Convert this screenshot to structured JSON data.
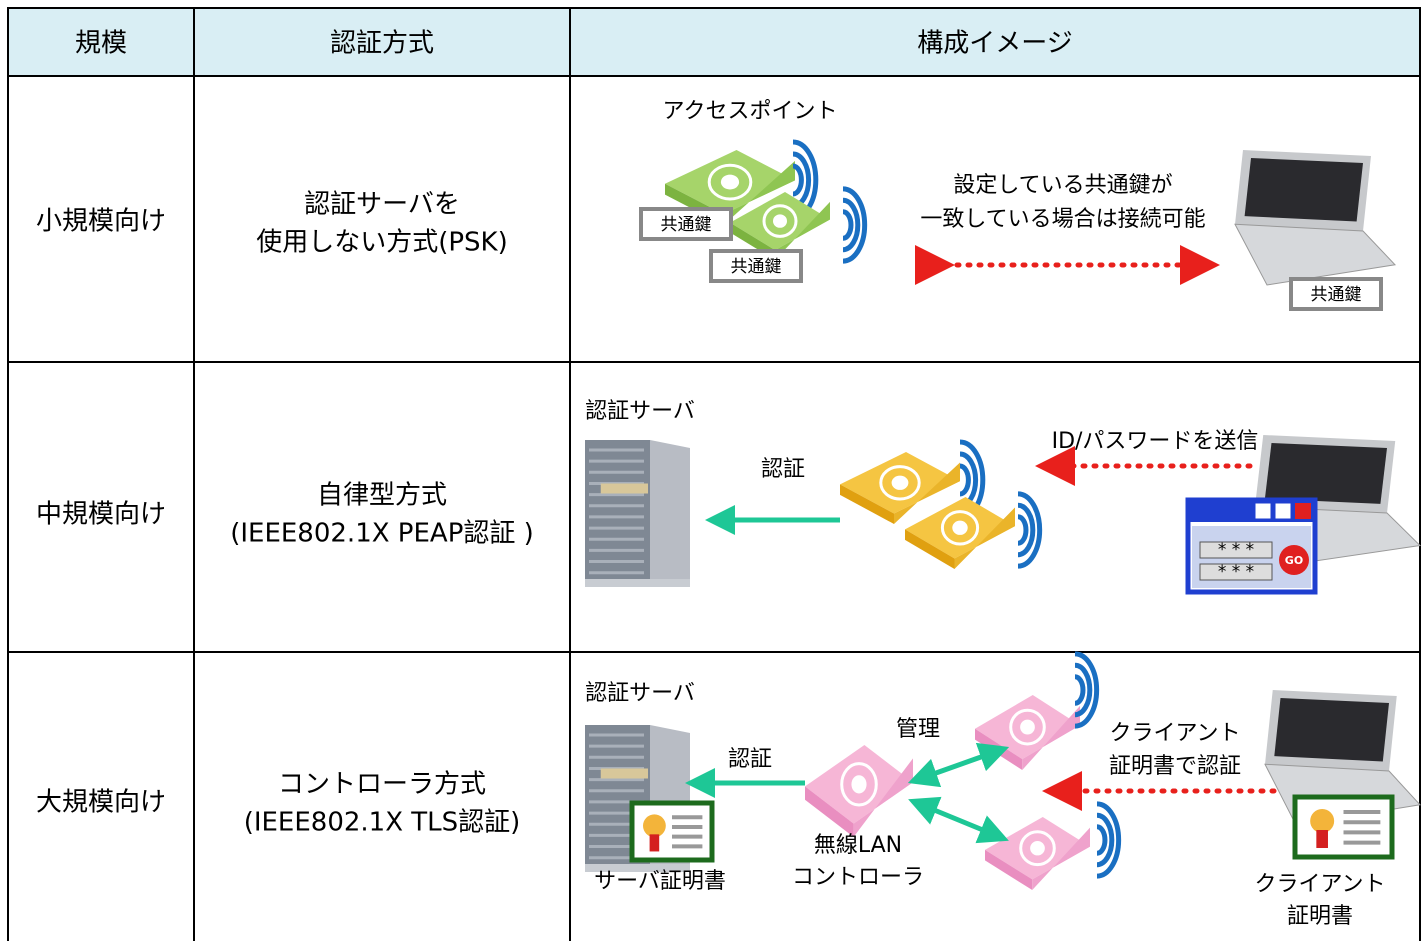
{
  "header": {
    "columns": [
      "規模",
      "認証方式",
      "構成イメージ"
    ]
  },
  "rows": [
    {
      "scale": "小規模向け",
      "method": [
        "認証サーバを",
        "使用しない方式(PSK)"
      ],
      "image": {
        "access_point": "アクセスポイント",
        "key_labels": [
          "共通鍵",
          "共通鍵",
          "共通鍵"
        ],
        "note": [
          "設定している共通鍵が",
          "一致している場合は接続可能"
        ]
      }
    },
    {
      "scale": "中規模向け",
      "method": [
        "自律型方式",
        "(IEEE802.1X PEAP認証 )"
      ],
      "image": {
        "server": "認証サーバ",
        "auth": "認証",
        "send": "ID/パスワードを送信",
        "password_fields": [
          "* * *",
          "* * *"
        ],
        "button": "GO"
      }
    },
    {
      "scale": "大規模向け",
      "method": [
        "コントローラ方式",
        "(IEEE802.1X TLS認証)"
      ],
      "image": {
        "server": "認証サーバ",
        "auth": "認証",
        "manage": "管理",
        "client_auth": [
          "クライアント",
          "証明書で認証"
        ],
        "controller": [
          "無線LAN",
          "コントローラ"
        ],
        "server_cert": "サーバ証明書",
        "client_cert": [
          "クライアント",
          "証明書"
        ]
      }
    }
  ]
}
